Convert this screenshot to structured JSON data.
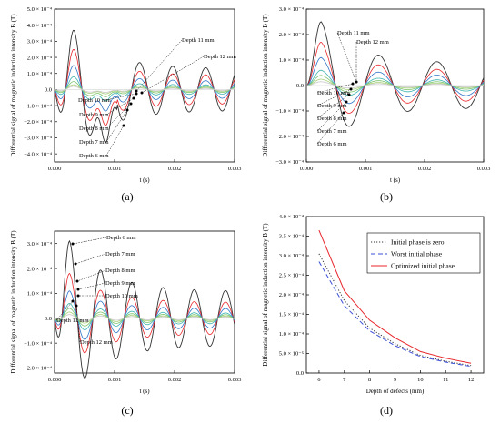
{
  "chart_data": [
    {
      "panel_label": "(a)",
      "type": "line",
      "xlabel": "t (s)",
      "ylabel": "Differential signal of magnetic induction intensity  B (T)",
      "xlim": [
        0,
        0.003
      ],
      "ylim": [
        -0.00045,
        0.0005
      ],
      "xticks": [
        "0.000",
        "0.001",
        "0.002",
        "0.003"
      ],
      "yticks": [
        "5.0 × 10⁻⁴",
        "4.0 × 10⁻⁴",
        "3.0 × 10⁻⁴",
        "2.0 × 10⁻⁴",
        "1.0 × 10⁻⁴",
        "0.0",
        "−1.0 × 10⁻⁴",
        "−2.0 × 10⁻⁴",
        "−3.0 × 10⁻⁴",
        "−4.0 × 10⁻⁴"
      ],
      "ytick_values": [
        0.0005,
        0.0004,
        0.0003,
        0.0002,
        0.0001,
        0,
        -0.0001,
        -0.0002,
        -0.0003,
        -0.0004
      ],
      "curves": {
        "depths_mm": [
          6,
          7,
          8,
          9,
          10,
          11,
          12
        ],
        "colors": [
          "#333333",
          "#e8262b",
          "#2f74c8",
          "#3bb3b0",
          "#7cc36a",
          "#a8d07a",
          "#c8c8c8"
        ],
        "peak_amplitude": [
          0.00037,
          0.00025,
          0.00015,
          8e-05,
          5e-05,
          3e-05,
          2e-05
        ],
        "first_peak_t": 0.00032,
        "period": 0.00055,
        "trough_t": 0.00085,
        "trough_value": -0.00033
      },
      "annotations": [
        "Depth 11 mm",
        "Depth 12 mm",
        "Depth 10 mm",
        "Depth 9 mm",
        "Depth 8 mm",
        "Depth 7 mm",
        "Depth 6 mm"
      ]
    },
    {
      "panel_label": "(b)",
      "type": "line",
      "xlabel": "t (s)",
      "ylabel": "Differential signal of magnetic induction intensity  B (T)",
      "xlim": [
        0,
        0.003
      ],
      "ylim": [
        -0.0003,
        0.0003
      ],
      "xticks": [
        "0.000",
        "0.001",
        "0.002",
        "0.003"
      ],
      "yticks": [
        "3.0 × 10⁻⁴",
        "2.0 × 10⁻⁴",
        "1.0 × 10⁻⁴",
        "0.0",
        "−1.0 × 10⁻⁴",
        "−2.0 × 10⁻⁴",
        "−3.0 × 10⁻⁴"
      ],
      "ytick_values": [
        0.0003,
        0.0002,
        0.0001,
        0,
        -0.0001,
        -0.0002,
        -0.0003
      ],
      "curves": {
        "depths_mm": [
          6,
          7,
          8,
          9,
          10,
          11,
          12
        ],
        "colors": [
          "#333333",
          "#e8262b",
          "#2f74c8",
          "#3bb3b0",
          "#7cc36a",
          "#a8d07a",
          "#c8c8c8"
        ],
        "peak_amplitude": [
          0.00025,
          0.00017,
          0.00011,
          6e-05,
          4e-05,
          2.5e-05,
          1.5e-05
        ],
        "first_peak_t": 0.00025,
        "period": 0.00098,
        "trough_t": 0.00078,
        "trough_value": -0.00023
      },
      "annotations": [
        "Depth 11 mm",
        "Depth 12 mm",
        "Depth 10 mm",
        "Depth 9 mm",
        "Depth 8 mm",
        "Depth 7 mm",
        "Depth 6 mm"
      ]
    },
    {
      "panel_label": "(c)",
      "type": "line",
      "xlabel": "t (s)",
      "ylabel": "Differential signal of magnetic induction intensity  B (T)",
      "xlim": [
        0,
        0.003
      ],
      "ylim": [
        -0.00022,
        0.00035
      ],
      "xticks": [
        "0.000",
        "0.001",
        "0.002",
        "0.003"
      ],
      "yticks": [
        "3.0 × 10⁻⁴",
        "2.0 × 10⁻⁴",
        "1.0 × 10⁻⁴",
        "0.0",
        "−1.0 × 10⁻⁴",
        "−2.0 × 10⁻⁴"
      ],
      "ytick_values": [
        0.0003,
        0.0002,
        0.0001,
        0,
        -0.0001,
        -0.0002
      ],
      "curves": {
        "depths_mm": [
          6,
          7,
          8,
          9,
          10,
          11,
          12
        ],
        "colors": [
          "#333333",
          "#e8262b",
          "#2f74c8",
          "#3bb3b0",
          "#7cc36a",
          "#a8d07a",
          "#c8c8c8"
        ],
        "peak_amplitude": [
          0.00031,
          0.00018,
          0.00011,
          6e-05,
          4e-05,
          2.5e-05,
          1.5e-05
        ],
        "first_peak_t": 0.00025,
        "period": 0.00052,
        "trough_t": 0.00052,
        "trough_value": -0.00018
      },
      "annotations": [
        "Depth 6 mm",
        "Depth 7 mm",
        "Depth 8 mm",
        "Depth 9 mm",
        "Depth 10 mm",
        "Depth 11 mm",
        "Depth 12 mm"
      ]
    },
    {
      "panel_label": "(d)",
      "type": "line",
      "xlabel": "Depth of defects (mm)",
      "ylabel": "Differential signal of magnetic induction intensity  B (T)",
      "xlim": [
        5.5,
        12.5
      ],
      "ylim": [
        0,
        0.0004
      ],
      "x": [
        6,
        7,
        8,
        9,
        10,
        11,
        12
      ],
      "xticks": [
        "6",
        "7",
        "8",
        "9",
        "10",
        "11",
        "12"
      ],
      "yticks": [
        "4.0 × 10⁻⁴",
        "3.5 × 10⁻⁴",
        "3.0 × 10⁻⁴",
        "2.5 × 10⁻⁴",
        "2.0 × 10⁻⁴",
        "1.5 × 10⁻⁴",
        "1.0 × 10⁻⁴",
        "5.0 × 10⁻⁵",
        "0.0"
      ],
      "ytick_values": [
        0.0004,
        0.00035,
        0.0003,
        0.00025,
        0.0002,
        0.00015,
        0.0001,
        5e-05,
        0
      ],
      "legend_position": "top-right",
      "series": [
        {
          "name": "Initial phase is zero",
          "color": "#333333",
          "dash": "1.2,1.8",
          "values": [
            0.000305,
            0.000185,
            0.000115,
            7.5e-05,
            4.5e-05,
            3e-05,
            1.9e-05
          ]
        },
        {
          "name": "Worst initial phase",
          "color": "#3a4fd8",
          "dash": "5,3",
          "values": [
            0.000285,
            0.000172,
            0.000108,
            7e-05,
            4.2e-05,
            2.8e-05,
            1.7e-05
          ]
        },
        {
          "name": "Optimized initial phase",
          "color": "#e8262b",
          "dash": "",
          "values": [
            0.000365,
            0.00021,
            0.000135,
            9e-05,
            5.5e-05,
            3.8e-05,
            2.5e-05
          ]
        }
      ]
    }
  ]
}
